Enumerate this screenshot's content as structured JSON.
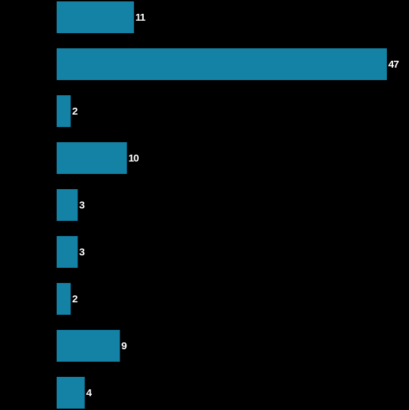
{
  "chart_data": {
    "type": "bar",
    "orientation": "horizontal",
    "categories": [
      null,
      null,
      null,
      null,
      null,
      null,
      null,
      null,
      null
    ],
    "values": [
      11,
      47,
      2,
      10,
      3,
      3,
      2,
      9,
      4
    ],
    "color": "#1482a5",
    "xlim": [
      0,
      47
    ]
  }
}
